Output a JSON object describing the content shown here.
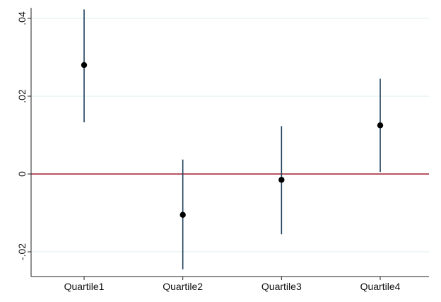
{
  "chart_data": {
    "type": "scatter",
    "subtype": "coefficient-plot-with-confidence-intervals",
    "categories": [
      "Quartile1",
      "Quartile2",
      "Quartile3",
      "Quartile4"
    ],
    "estimates": [
      0.028,
      -0.0105,
      -0.0015,
      0.0125
    ],
    "ci_low": [
      0.0133,
      -0.0245,
      -0.0155,
      0.0005
    ],
    "ci_high": [
      0.0423,
      0.0037,
      0.0123,
      0.0245
    ],
    "reference_line": 0,
    "y_ticks": [
      0.04,
      0.02,
      0,
      -0.02
    ],
    "y_tick_labels": [
      ".04",
      ".02",
      "0",
      "-.02"
    ],
    "ylim": [
      -0.0245,
      0.0425
    ],
    "grid": true,
    "title": "",
    "xlabel": "",
    "ylabel": "",
    "colors": {
      "ci": "#1e3e5a",
      "point": "#000000",
      "reference": "#a01f2d",
      "grid": "#dcefef",
      "axis": "#222222"
    }
  }
}
